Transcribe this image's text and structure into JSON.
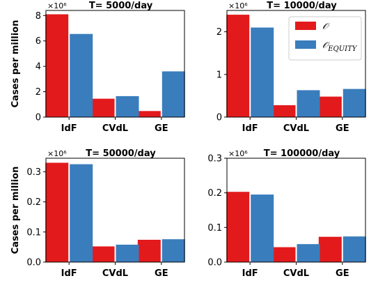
{
  "colors": {
    "O": "#e31a1c",
    "O_EQUITY": "#3a7dbd"
  },
  "legend": [
    {
      "symbol": "𝒪",
      "subscript": "",
      "color": "#e31a1c"
    },
    {
      "symbol": "𝒪",
      "subscript": "EQUITY",
      "color": "#3a7dbd"
    }
  ],
  "chart_data": [
    {
      "type": "bar",
      "title": "T= 5000/day",
      "ylabel": "Cases per million",
      "multiplier": "×10⁶",
      "categories": [
        "IdF",
        "CVdL",
        "GE"
      ],
      "series": [
        {
          "key": "O",
          "values": [
            8.1,
            1.45,
            0.48
          ]
        },
        {
          "key": "O_EQUITY",
          "values": [
            6.55,
            1.65,
            3.6
          ]
        }
      ],
      "ylim": [
        0,
        8.4
      ],
      "yticks": [
        0,
        2,
        4,
        6,
        8
      ],
      "ytick_labels": [
        "0",
        "2",
        "4",
        "6",
        "8"
      ]
    },
    {
      "type": "bar",
      "title": "T= 10000/day",
      "ylabel": "",
      "multiplier": "×10⁶",
      "categories": [
        "IdF",
        "CVdL",
        "GE"
      ],
      "series": [
        {
          "key": "O",
          "values": [
            2.4,
            0.28,
            0.48
          ]
        },
        {
          "key": "O_EQUITY",
          "values": [
            2.1,
            0.63,
            0.66
          ]
        }
      ],
      "ylim": [
        0,
        2.5
      ],
      "yticks": [
        0,
        1,
        2
      ],
      "ytick_labels": [
        "0",
        "1",
        "2"
      ]
    },
    {
      "type": "bar",
      "title": "T= 50000/day",
      "ylabel": "Cases per million",
      "multiplier": "×10⁶",
      "categories": [
        "IdF",
        "CVdL",
        "GE"
      ],
      "series": [
        {
          "key": "O",
          "values": [
            0.33,
            0.052,
            0.074
          ]
        },
        {
          "key": "O_EQUITY",
          "values": [
            0.325,
            0.058,
            0.076
          ]
        }
      ],
      "ylim": [
        0,
        0.345
      ],
      "yticks": [
        0,
        0.1,
        0.2,
        0.3
      ],
      "ytick_labels": [
        "0.0",
        "0.1",
        "0.2",
        "0.3"
      ]
    },
    {
      "type": "bar",
      "title": "T= 100000/day",
      "ylabel": "",
      "multiplier": "×10⁶",
      "categories": [
        "IdF",
        "CVdL",
        "GE"
      ],
      "series": [
        {
          "key": "O",
          "values": [
            0.203,
            0.043,
            0.073
          ]
        },
        {
          "key": "O_EQUITY",
          "values": [
            0.195,
            0.052,
            0.074
          ]
        }
      ],
      "ylim": [
        0,
        0.3
      ],
      "yticks": [
        0,
        0.1,
        0.2,
        0.3
      ],
      "ytick_labels": [
        "0.0",
        "0.1",
        "0.2",
        "0.3"
      ]
    }
  ]
}
